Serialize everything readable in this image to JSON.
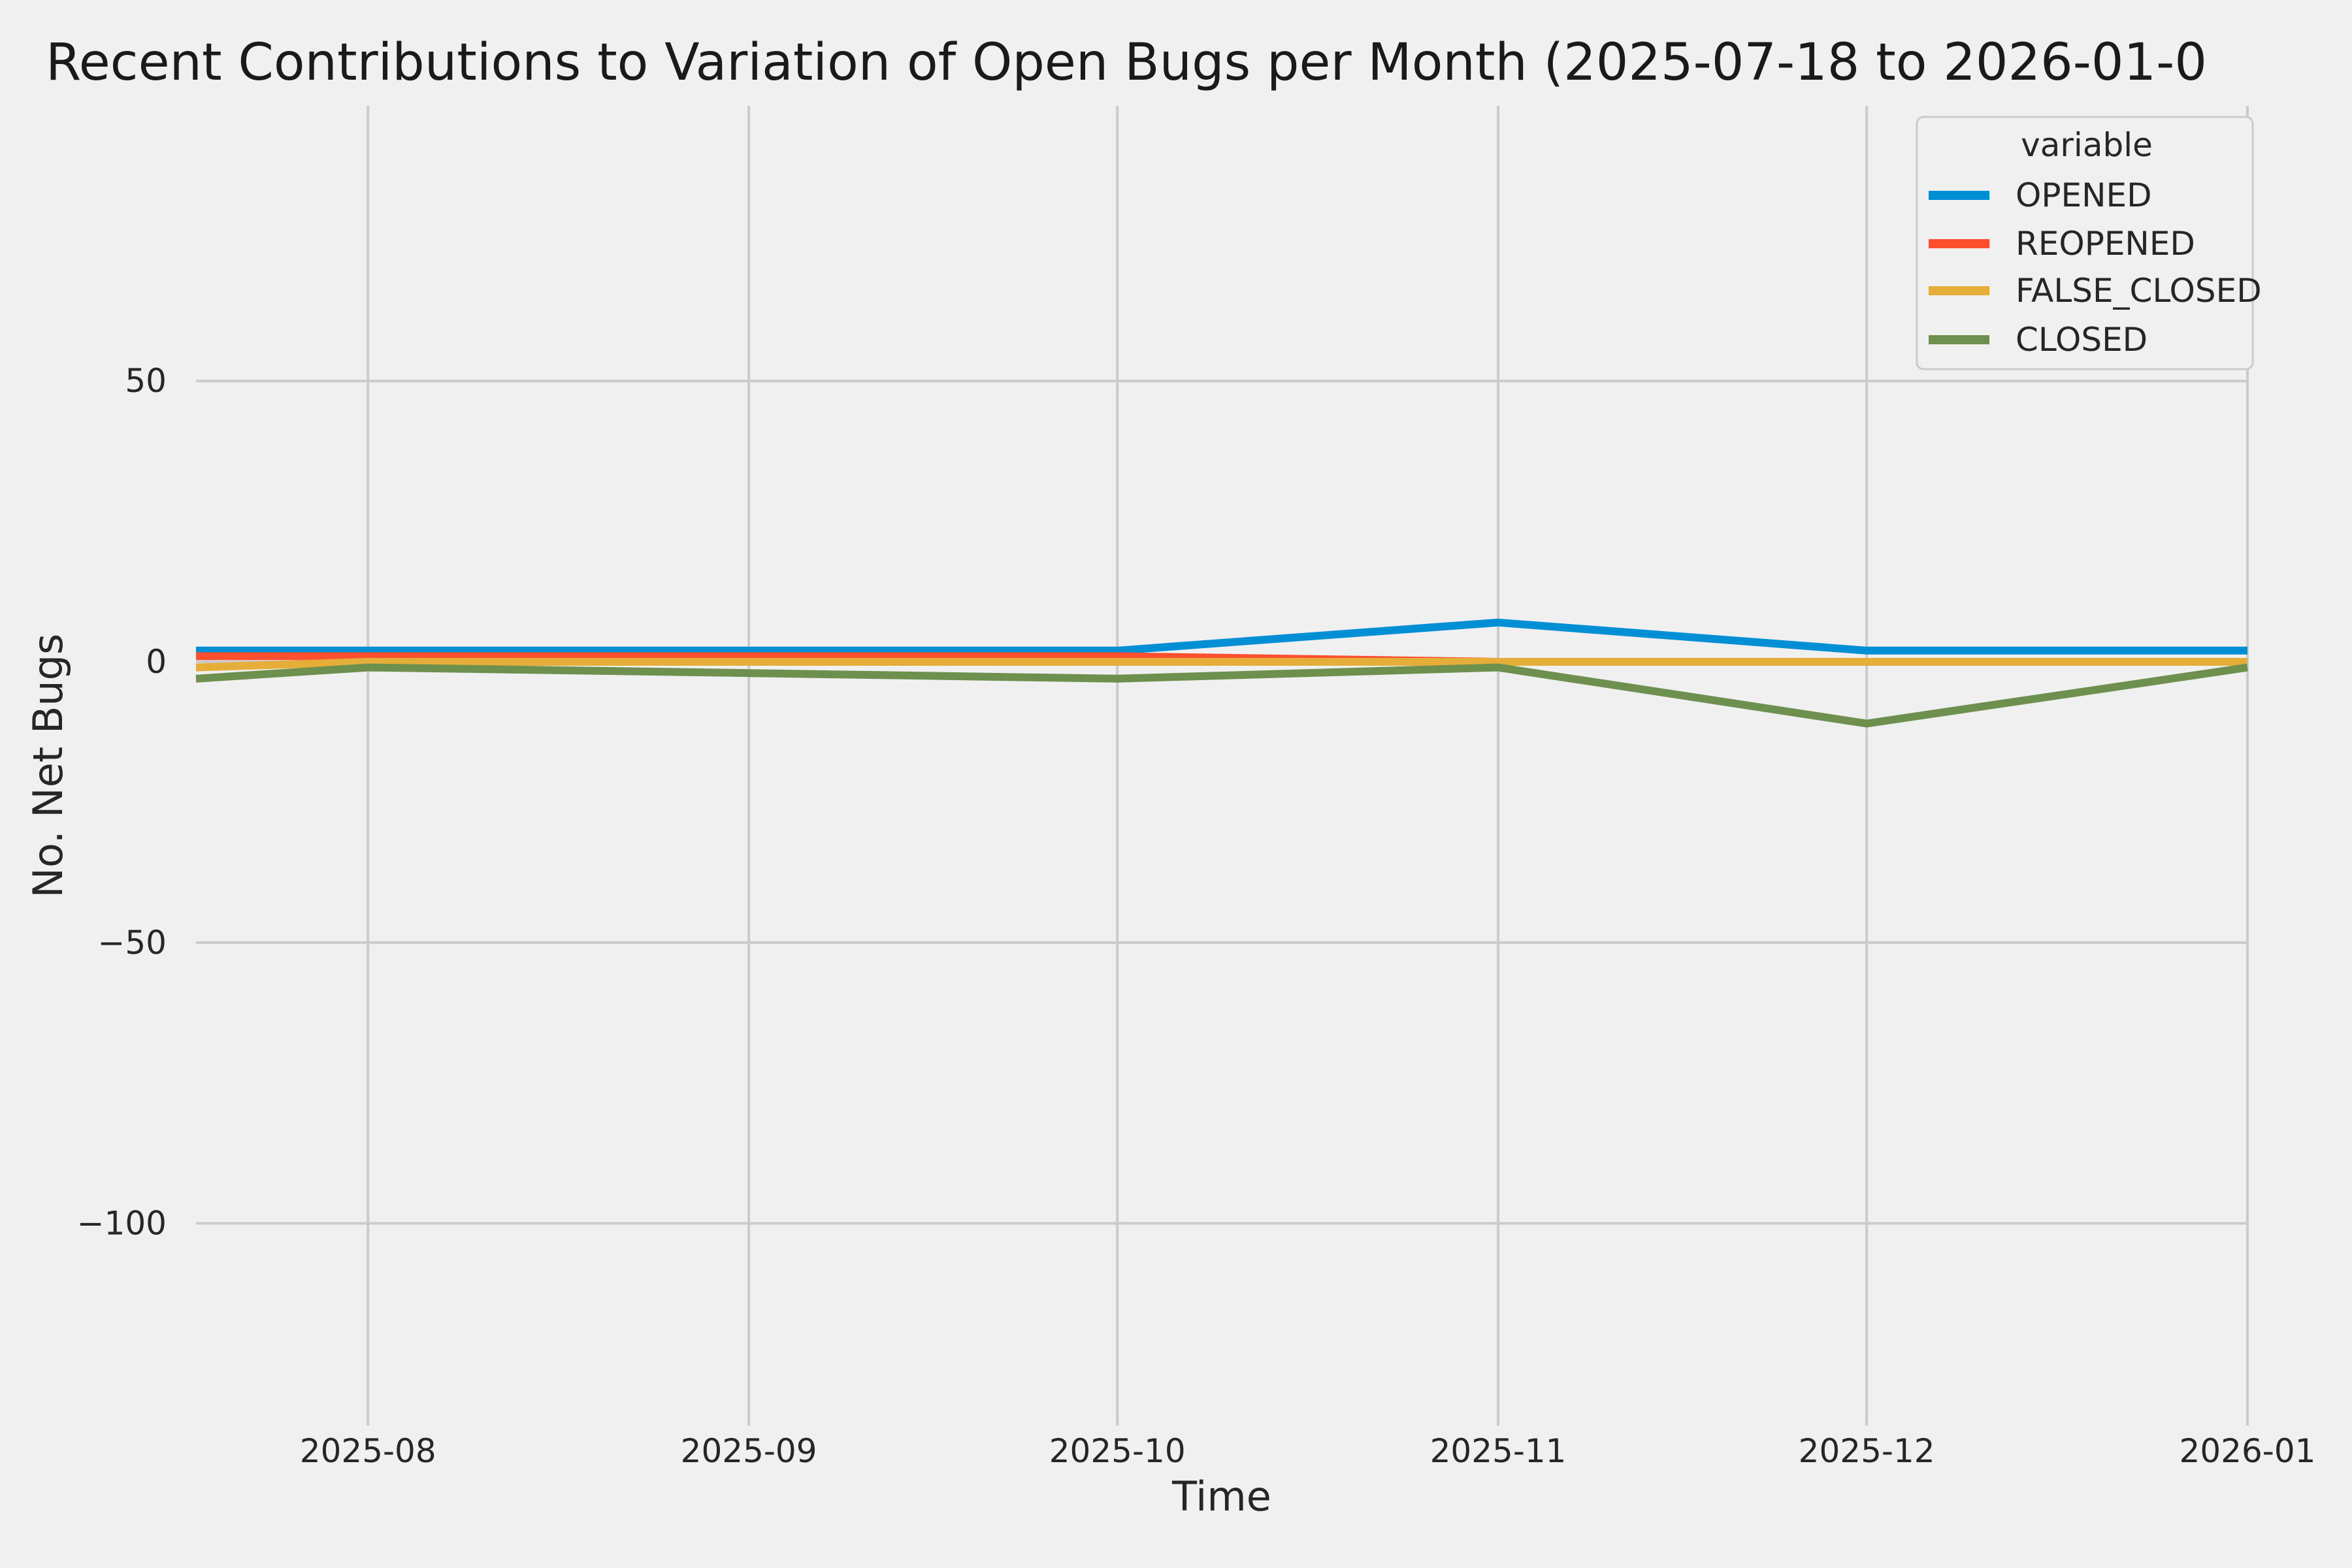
{
  "figure": {
    "background": "#f0f0f0",
    "grid_color": "#cbcbcb",
    "text_color": "#262626"
  },
  "chart_data": {
    "type": "line",
    "title": "Recent Contributions to Variation of Open Bugs per Month (2025-07-18 to 2026-01-0",
    "xlabel": "Time",
    "ylabel": "No. Net Bugs",
    "grid": true,
    "legend": {
      "title": "variable",
      "position": "upper right"
    },
    "xlim": [
      "2025-07-18",
      "2026-01-01"
    ],
    "ylim": [
      -136,
      99
    ],
    "x": [
      "2025-07-18",
      "2025-08-01",
      "2025-09-01",
      "2025-10-01",
      "2025-11-01",
      "2025-12-01",
      "2026-01-01"
    ],
    "x_ticks": [
      {
        "label": "2025-08",
        "date": "2025-08-01"
      },
      {
        "label": "2025-09",
        "date": "2025-09-01"
      },
      {
        "label": "2025-10",
        "date": "2025-10-01"
      },
      {
        "label": "2025-11",
        "date": "2025-11-01"
      },
      {
        "label": "2025-12",
        "date": "2025-12-01"
      },
      {
        "label": "2026-01",
        "date": "2026-01-01"
      }
    ],
    "y_ticks": [
      {
        "label": "50",
        "value": 50
      },
      {
        "label": "0",
        "value": 0
      },
      {
        "label": "−50",
        "value": -50
      },
      {
        "label": "−100",
        "value": -100
      }
    ],
    "series": [
      {
        "name": "OPENED",
        "color": "#008fd5",
        "values": [
          2,
          2,
          2,
          2,
          7,
          2,
          2
        ]
      },
      {
        "name": "REOPENED",
        "color": "#fc4f30",
        "values": [
          1,
          1,
          1,
          1,
          0,
          0,
          0
        ]
      },
      {
        "name": "FALSE_CLOSED",
        "color": "#e5ae38",
        "values": [
          -1,
          0,
          0,
          0,
          0,
          0,
          0
        ]
      },
      {
        "name": "CLOSED",
        "color": "#6d904f",
        "values": [
          -3,
          -1,
          -2,
          -3,
          -1,
          -11,
          -1
        ]
      }
    ]
  }
}
